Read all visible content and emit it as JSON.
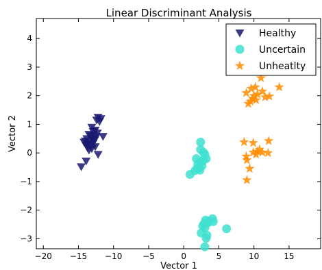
{
  "chart_data": {
    "type": "scatter",
    "title": "Linear Discriminant Analysis",
    "xlabel": "Vector 1",
    "ylabel": "Vector 2",
    "xlim": [
      -21,
      19.5
    ],
    "ylim": [
      -3.35,
      4.7
    ],
    "xticks": [
      -20,
      -15,
      -10,
      -5,
      0,
      5,
      10,
      15
    ],
    "yticks": [
      -3,
      -2,
      -1,
      0,
      1,
      2,
      3,
      4
    ],
    "grid": false,
    "legend_position": "top-right",
    "series": [
      {
        "name": "Healthy",
        "marker": "triangle-down",
        "color": "#191970",
        "points": [
          [
            -12.2,
            1.25
          ],
          [
            -11.8,
            1.2
          ],
          [
            -12.4,
            1.15
          ],
          [
            -12.0,
            1.1
          ],
          [
            -13.1,
            0.9
          ],
          [
            -12.6,
            0.8
          ],
          [
            -12.9,
            0.75
          ],
          [
            -12.3,
            0.7
          ],
          [
            -13.5,
            0.65
          ],
          [
            -12.8,
            0.62
          ],
          [
            -13.2,
            0.6
          ],
          [
            -11.5,
            0.58
          ],
          [
            -12.5,
            0.55
          ],
          [
            -13.8,
            0.5
          ],
          [
            -13.0,
            0.48
          ],
          [
            -12.7,
            0.45
          ],
          [
            -14.0,
            0.42
          ],
          [
            -13.4,
            0.4
          ],
          [
            -14.2,
            0.38
          ],
          [
            -12.9,
            0.35
          ],
          [
            -13.6,
            0.32
          ],
          [
            -13.9,
            0.28
          ],
          [
            -13.3,
            0.25
          ],
          [
            -12.6,
            0.22
          ],
          [
            -13.7,
            0.18
          ],
          [
            -13.1,
            0.15
          ],
          [
            -13.5,
            0.1
          ],
          [
            -12.2,
            -0.05
          ],
          [
            -13.9,
            -0.28
          ],
          [
            -14.6,
            -0.48
          ]
        ]
      },
      {
        "name": "Uncertain",
        "marker": "circle",
        "color": "#40E0D0",
        "points": [
          [
            2.4,
            0.38
          ],
          [
            2.4,
            0.12
          ],
          [
            2.8,
            0.02
          ],
          [
            3.0,
            -0.05
          ],
          [
            3.2,
            -0.2
          ],
          [
            2.8,
            -0.25
          ],
          [
            1.8,
            -0.2
          ],
          [
            2.5,
            -0.3
          ],
          [
            2.0,
            -0.4
          ],
          [
            2.6,
            -0.45
          ],
          [
            2.2,
            -0.5
          ],
          [
            1.9,
            -0.55
          ],
          [
            2.3,
            -0.6
          ],
          [
            1.6,
            -0.62
          ],
          [
            0.9,
            -0.75
          ],
          [
            3.1,
            -2.35
          ],
          [
            4.1,
            -2.3
          ],
          [
            3.6,
            -2.38
          ],
          [
            4.2,
            -2.4
          ],
          [
            3.4,
            -2.45
          ],
          [
            2.9,
            -2.48
          ],
          [
            2.7,
            -2.55
          ],
          [
            6.1,
            -2.65
          ],
          [
            3.0,
            -2.62
          ],
          [
            2.5,
            -2.8
          ],
          [
            3.3,
            -2.88
          ],
          [
            3.2,
            -2.98
          ],
          [
            3.0,
            -3.28
          ]
        ]
      },
      {
        "name": "Unheatlty",
        "marker": "star",
        "color": "#FF8C00",
        "points": [
          [
            11.0,
            2.62
          ],
          [
            10.2,
            2.3
          ],
          [
            13.6,
            2.3
          ],
          [
            9.6,
            2.25
          ],
          [
            11.2,
            2.15
          ],
          [
            8.9,
            2.1
          ],
          [
            10.5,
            2.05
          ],
          [
            10.0,
            2.0
          ],
          [
            11.6,
            1.95
          ],
          [
            12.2,
            1.98
          ],
          [
            9.8,
            1.9
          ],
          [
            10.3,
            1.85
          ],
          [
            9.5,
            1.8
          ],
          [
            9.2,
            1.72
          ],
          [
            12.1,
            0.42
          ],
          [
            8.6,
            0.38
          ],
          [
            9.9,
            0.35
          ],
          [
            10.8,
            0.12
          ],
          [
            10.5,
            0.05
          ],
          [
            9.9,
            0.02
          ],
          [
            12.0,
            0.0
          ],
          [
            11.2,
            0.02
          ],
          [
            10.3,
            -0.05
          ],
          [
            8.9,
            -0.12
          ],
          [
            9.0,
            -0.25
          ],
          [
            9.4,
            -0.55
          ],
          [
            9.0,
            -0.95
          ]
        ]
      }
    ]
  }
}
